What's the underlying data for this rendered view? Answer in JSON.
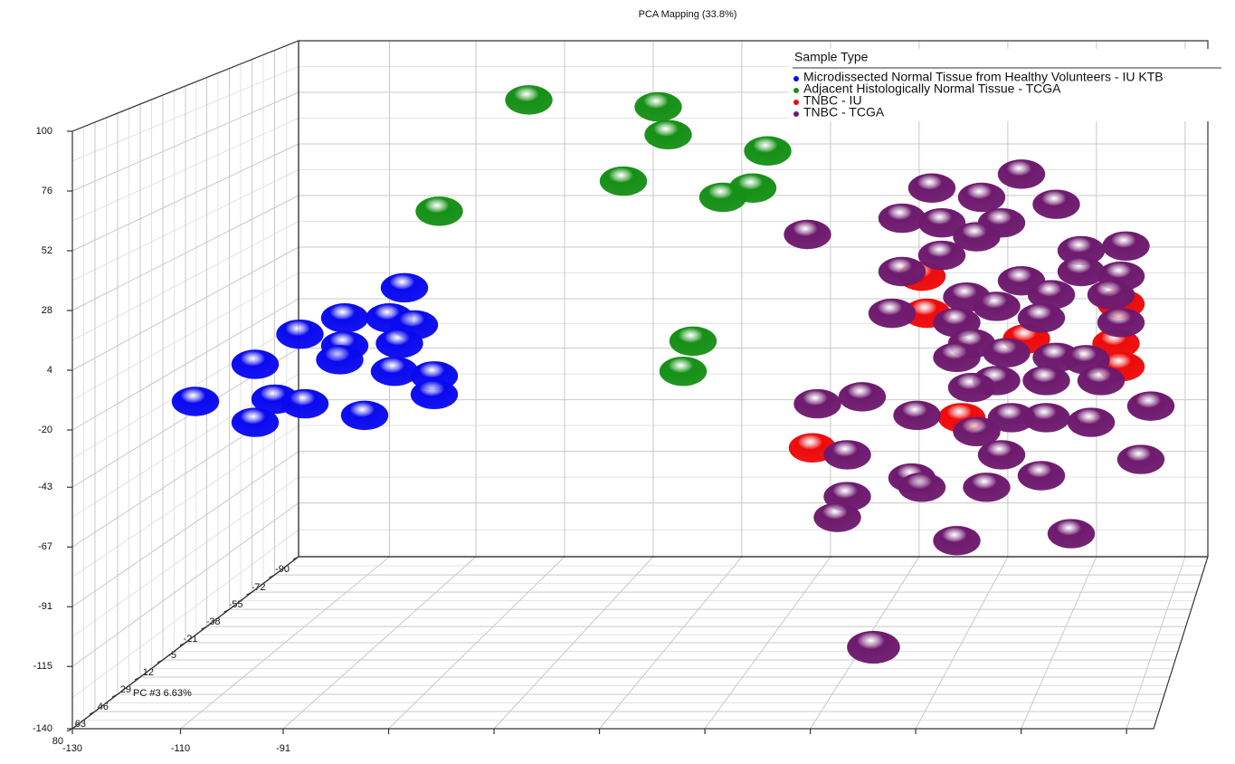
{
  "chart_data": {
    "type": "scatter3d",
    "title": "PCA Mapping (33.8%)",
    "zlabel": "PC #3 6.63%",
    "legend_title": "Sample Type",
    "legend": "upper right",
    "grid": true,
    "xlim": [
      -130,
      70
    ],
    "ylim": [
      -140,
      100
    ],
    "zlim": [
      -90,
      80
    ],
    "xticks": [
      -130,
      -110,
      -91
    ],
    "yticks": [
      100,
      76,
      52,
      28,
      4,
      -20,
      -43,
      -67,
      -91,
      -115,
      -140
    ],
    "zticks": [
      -90,
      -72,
      -55,
      -38,
      -21,
      -5,
      12,
      29,
      46,
      63,
      80
    ],
    "series": [
      {
        "name": "Microdissected Normal Tissue from Healthy Volunteers - IU KTB",
        "color": "#0a0af0",
        "x": [
          -86,
          -98,
          -89,
          -84,
          -107,
          -98,
          -87,
          -116,
          -99,
          -88,
          -80,
          -80,
          -128,
          -112,
          -106,
          -116,
          -94
        ],
        "values": [
          13,
          0,
          0,
          -3,
          -7,
          -12,
          -11,
          -20,
          -18,
          -23,
          -25,
          -33,
          -36,
          -35,
          -37,
          -45,
          -42
        ],
        "z": [
          -5,
          -5,
          -5,
          -5,
          -5,
          -5,
          -5,
          -5,
          -5,
          -5,
          -5,
          -5,
          -5,
          -5,
          -5,
          -5,
          -5
        ]
      },
      {
        "name": "Adjacent Histologically Normal Tissue - TCGA",
        "color": "#169016",
        "x": [
          -61,
          -35,
          -33,
          -13,
          -42,
          -16,
          -22,
          -79,
          -28,
          -30
        ],
        "values": [
          94,
          91,
          79,
          72,
          59,
          56,
          52,
          46,
          -10,
          -23
        ],
        "z": [
          -5,
          -5,
          -5,
          -5,
          -5,
          -5,
          -5,
          -5,
          -5,
          -5
        ]
      },
      {
        "name": "TNBC - IU",
        "color": "#ee0a0a",
        "x": [
          18,
          19,
          58,
          57,
          58,
          26,
          -4,
          39
        ],
        "values": [
          18,
          2,
          6,
          -11,
          -21,
          -43,
          -56,
          -9
        ],
        "z": [
          -5,
          -5,
          -5,
          -5,
          -5,
          -5,
          -5,
          -5
        ]
      },
      {
        "name": "TNBC - TCGA",
        "color": "#6e1a6e",
        "x": [
          38,
          20,
          30,
          45,
          14,
          22,
          34,
          -5,
          29,
          50,
          59,
          22,
          14,
          50,
          58,
          38,
          27,
          44,
          56,
          33,
          12,
          25,
          42,
          58,
          28,
          35,
          45,
          51,
          25,
          33,
          43,
          54,
          28,
          -3,
          6,
          17,
          43,
          52,
          64,
          36,
          29,
          34,
          3,
          16,
          42,
          31,
          18,
          62,
          3,
          1,
          25,
          48,
          16
        ],
        "values": [
          62,
          56,
          52,
          49,
          43,
          41,
          41,
          36,
          35,
          29,
          31,
          27,
          20,
          20,
          18,
          16,
          9,
          10,
          10,
          5,
          2,
          -2,
          0,
          -2,
          -11,
          -15,
          -17,
          -18,
          -17,
          -27,
          -27,
          -27,
          -30,
          -37,
          -34,
          -42,
          -43,
          -45,
          -38,
          -43,
          -49,
          -59,
          -59,
          -69,
          -68,
          -73,
          -73,
          -61,
          -77,
          -86,
          -96,
          -93,
          -115
        ],
        "z": [
          -5,
          -5,
          -5,
          -5,
          -5,
          -5,
          -5,
          -5,
          -5,
          -5,
          -5,
          -5,
          -5,
          -5,
          -5,
          -5,
          -5,
          -5,
          -5,
          -5,
          -5,
          -5,
          -5,
          -5,
          -5,
          -5,
          -5,
          -5,
          -5,
          -5,
          -5,
          -5,
          -5,
          -5,
          -5,
          -5,
          -5,
          -5,
          -5,
          -5,
          -5,
          -5,
          -5,
          -5,
          -5,
          -5,
          -5,
          -5,
          -5,
          -5,
          -5,
          -5,
          60
        ]
      }
    ]
  }
}
